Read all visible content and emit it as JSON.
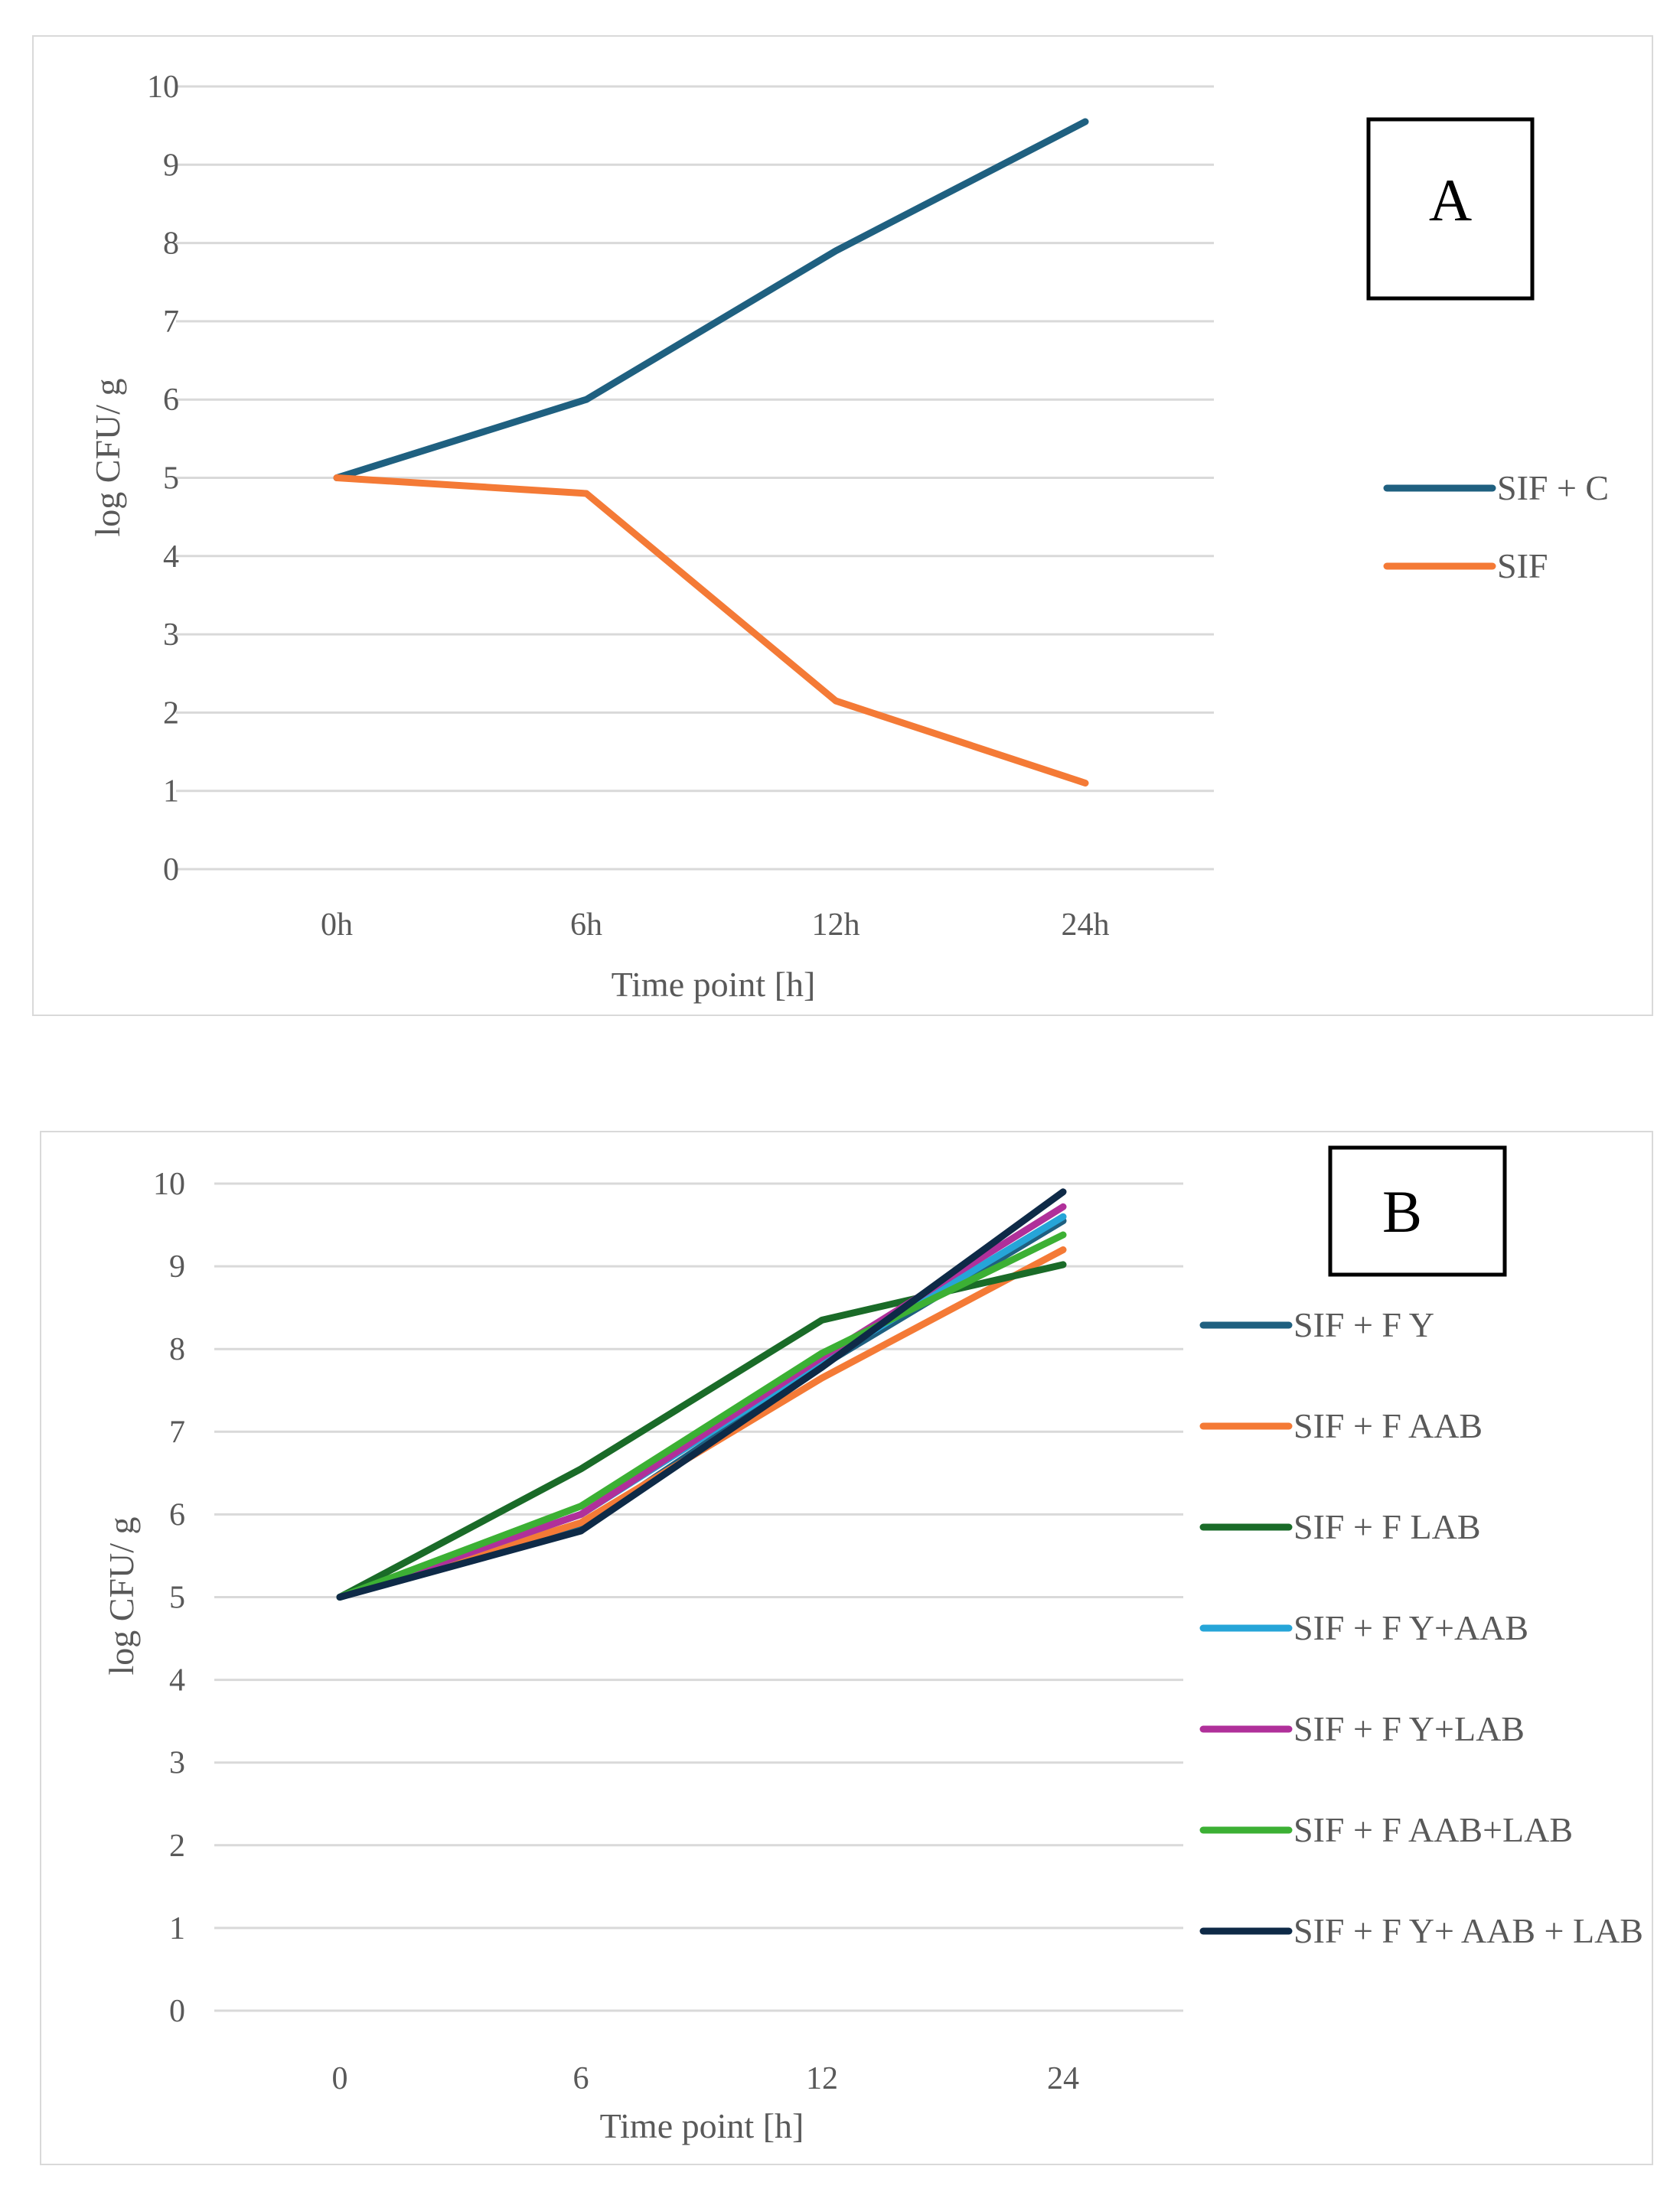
{
  "chart_data": [
    {
      "type": "line",
      "panel_label": "A",
      "categories": [
        "0h",
        "6h",
        "12h",
        "24h"
      ],
      "series": [
        {
          "name": "SIF + C",
          "color": "#1f6080",
          "values": [
            5,
            6,
            7.9,
            9.55
          ]
        },
        {
          "name": "SIF",
          "color": "#f47a36",
          "values": [
            5,
            4.8,
            2.15,
            1.1
          ]
        }
      ],
      "xlabel": "Time point [h]",
      "ylabel": "log CFU/ g",
      "ylim": [
        0,
        10
      ],
      "yticks": [
        0,
        1,
        2,
        3,
        4,
        5,
        6,
        7,
        8,
        9,
        10
      ],
      "grid": true,
      "legend": "right"
    },
    {
      "type": "line",
      "panel_label": "B",
      "categories": [
        "0",
        "6",
        "12",
        "24"
      ],
      "series": [
        {
          "name": "SIF + F Y",
          "color": "#1f6080",
          "values": [
            5,
            5.85,
            7.8,
            9.55
          ]
        },
        {
          "name": "SIF + F AAB",
          "color": "#f47a36",
          "values": [
            5,
            5.9,
            7.65,
            9.2
          ]
        },
        {
          "name": "SIF + F LAB",
          "color": "#1a6b28",
          "values": [
            5,
            6.55,
            8.35,
            9.02
          ]
        },
        {
          "name": "SIF + F Y+AAB",
          "color": "#26a5d8",
          "values": [
            5,
            6.0,
            7.85,
            9.6
          ]
        },
        {
          "name": "SIF + F Y+LAB",
          "color": "#b0309a",
          "values": [
            5,
            6.0,
            7.9,
            9.72
          ]
        },
        {
          "name": "SIF + F AAB+LAB",
          "color": "#3cb034",
          "values": [
            5,
            6.1,
            7.95,
            9.38
          ]
        },
        {
          "name": "SIF + F Y+ AAB + LAB",
          "color": "#0e2a47",
          "values": [
            5,
            5.8,
            7.78,
            9.9
          ]
        }
      ],
      "xlabel": "Time point [h]",
      "ylabel": "log CFU/ g",
      "ylim": [
        0,
        10
      ],
      "yticks": [
        0,
        1,
        2,
        3,
        4,
        5,
        6,
        7,
        8,
        9,
        10
      ],
      "grid": true,
      "legend": "right"
    }
  ]
}
